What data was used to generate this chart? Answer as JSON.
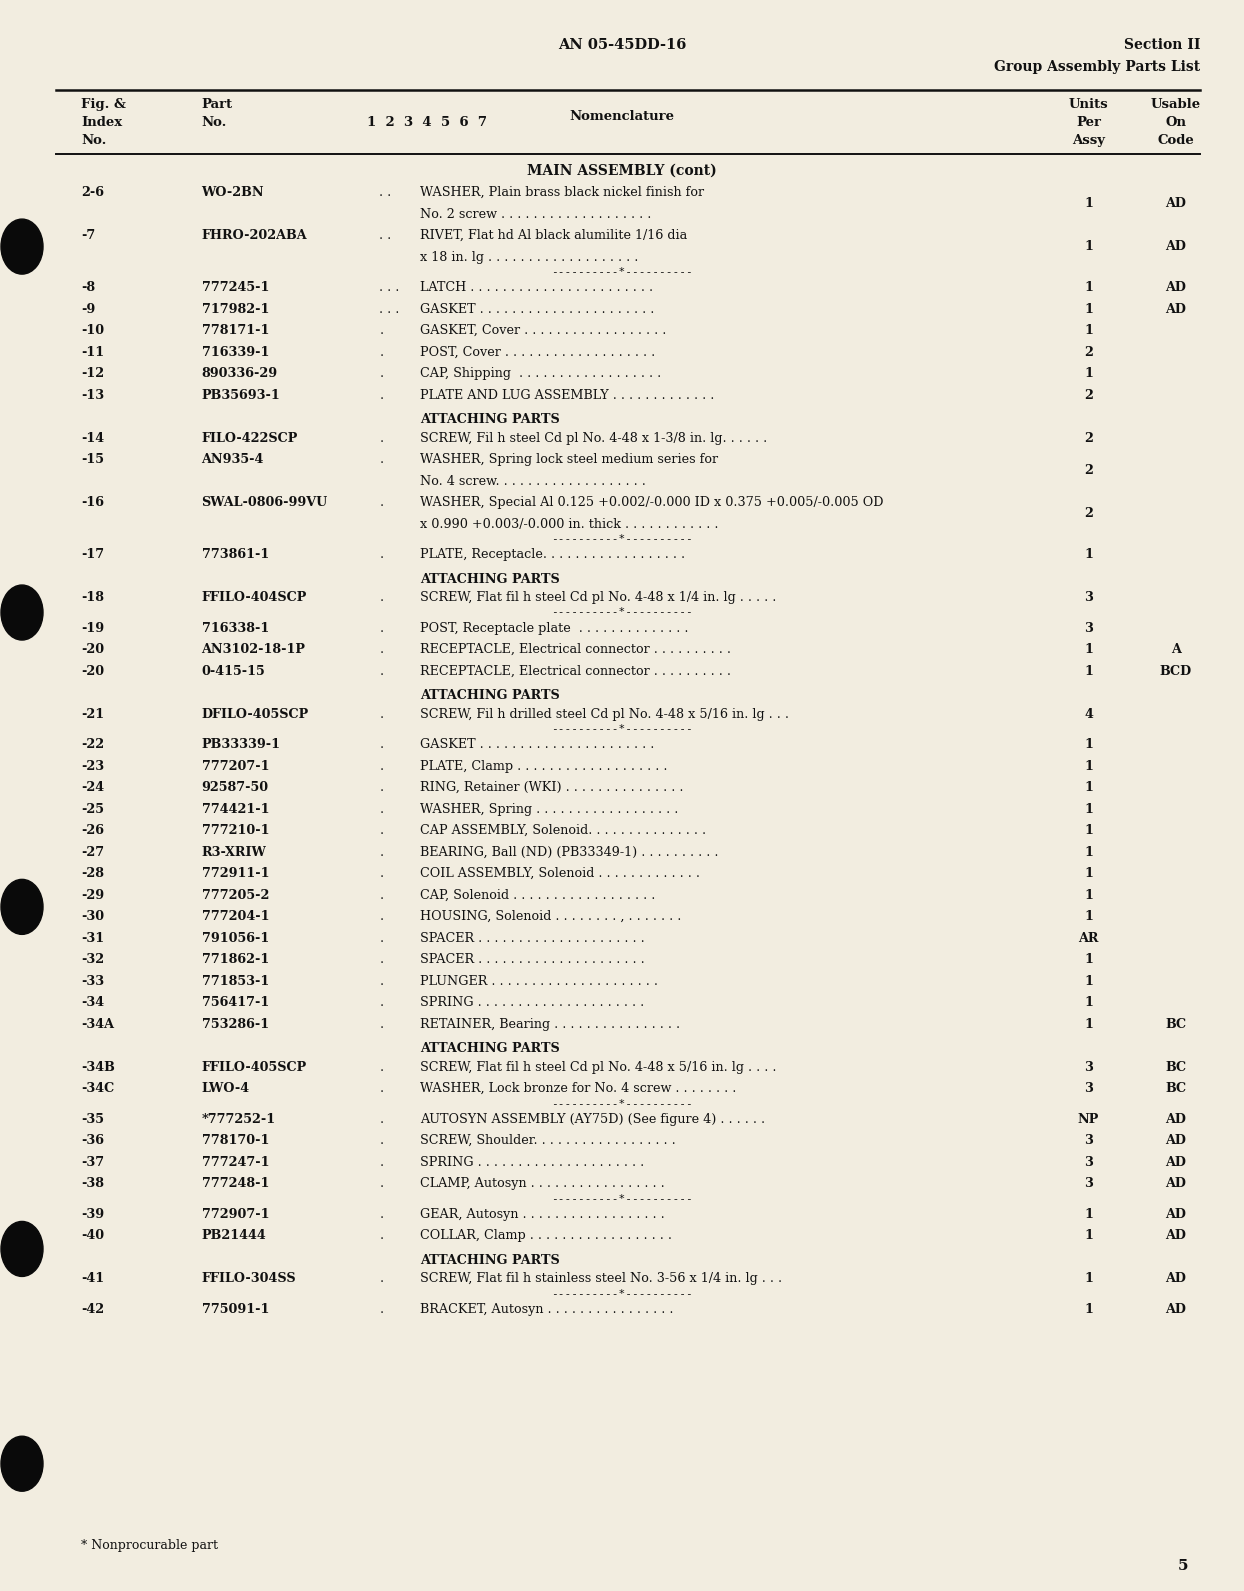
{
  "page_title_center": "AN 05-45DD-16",
  "page_title_right_line1": "Section II",
  "page_title_right_line2": "Group Assembly Parts List",
  "section_title": "MAIN ASSEMBLY (cont)",
  "bg_color": "#f2ede0",
  "text_color": "#111111",
  "page_number": "5",
  "col_x": {
    "fig": 0.068,
    "part": 0.16,
    "indent_marks": 0.31,
    "nomen": 0.34,
    "units": 0.88,
    "usable": 0.95
  },
  "rows": [
    {
      "fig": "2-6",
      "part": "WO-2BN",
      "dots": ". .",
      "nomenclature": "WASHER, Plain brass black nickel finish for\n                No. 2 screw . . . . . . . . . . . . . . . . . . .",
      "units": "1",
      "usable": "AD",
      "separator": false
    },
    {
      "fig": "-7",
      "part": "FHRO-202ABA",
      "dots": ". .",
      "nomenclature": "RIVET, Flat hd Al black alumilite 1/16 dia\n                x 18 in. lg . . . . . . . . . . . . . . . . . . .",
      "units": "1",
      "usable": "AD",
      "separator": true
    },
    {
      "fig": "-8",
      "part": "777245-1",
      "dots": ". . .",
      "nomenclature": "LATCH . . . . . . . . . . . . . . . . . . . . . . .",
      "units": "1",
      "usable": "AD",
      "separator": false
    },
    {
      "fig": "-9",
      "part": "717982-1",
      "dots": ". . .",
      "nomenclature": "GASKET . . . . . . . . . . . . . . . . . . . . . .",
      "units": "1",
      "usable": "AD",
      "separator": false
    },
    {
      "fig": "-10",
      "part": "778171-1",
      "dots": ".",
      "nomenclature": "GASKET, Cover . . . . . . . . . . . . . . . . . .",
      "units": "1",
      "usable": "",
      "separator": false
    },
    {
      "fig": "-11",
      "part": "716339-1",
      "dots": ".",
      "nomenclature": "POST, Cover . . . . . . . . . . . . . . . . . . .",
      "units": "2",
      "usable": "",
      "separator": false
    },
    {
      "fig": "-12",
      "part": "890336-29",
      "dots": ".",
      "nomenclature": "CAP, Shipping  . . . . . . . . . . . . . . . . . .",
      "units": "1",
      "usable": "",
      "separator": false
    },
    {
      "fig": "-13",
      "part": "PB35693-1",
      "dots": ".",
      "nomenclature": "PLATE AND LUG ASSEMBLY . . . . . . . . . . . . .",
      "units": "2",
      "usable": "",
      "separator": false
    },
    {
      "fig": "",
      "part": "",
      "dots": "",
      "nomenclature": "ATTACHING PARTS",
      "units": "",
      "usable": "",
      "separator": false,
      "attaching": true
    },
    {
      "fig": "-14",
      "part": "FILO-422SCP",
      "dots": ".",
      "nomenclature": "SCREW, Fil h steel Cd pl No. 4-48 x 1-3/8 in. lg. . . . . .",
      "units": "2",
      "usable": "",
      "separator": false
    },
    {
      "fig": "-15",
      "part": "AN935-4",
      "dots": ".",
      "nomenclature": "WASHER, Spring lock steel medium series for\n                No. 4 screw. . . . . . . . . . . . . . . . . . .",
      "units": "2",
      "usable": "",
      "separator": false
    },
    {
      "fig": "-16",
      "part": "SWAL-0806-99VU",
      "dots": ".",
      "nomenclature": "WASHER, Special Al 0.125 +0.002/-0.000 ID x 0.375 +0.005/-0.005 OD\n                x 0.990 +0.003/-0.000 in. thick . . . . . . . . . . . .",
      "units": "2",
      "usable": "",
      "separator": true
    },
    {
      "fig": "-17",
      "part": "773861-1",
      "dots": ".",
      "nomenclature": "PLATE, Receptacle. . . . . . . . . . . . . . . . . .",
      "units": "1",
      "usable": "",
      "separator": false
    },
    {
      "fig": "",
      "part": "",
      "dots": "",
      "nomenclature": "ATTACHING PARTS",
      "units": "",
      "usable": "",
      "separator": false,
      "attaching": true
    },
    {
      "fig": "-18",
      "part": "FFILO-404SCP",
      "dots": ".",
      "nomenclature": "SCREW, Flat fil h steel Cd pl No. 4-48 x 1/4 in. lg . . . . .",
      "units": "3",
      "usable": "",
      "separator": true
    },
    {
      "fig": "-19",
      "part": "716338-1",
      "dots": ".",
      "nomenclature": "POST, Receptacle plate  . . . . . . . . . . . . . .",
      "units": "3",
      "usable": "",
      "separator": false
    },
    {
      "fig": "-20",
      "part": "AN3102-18-1P",
      "dots": ".",
      "nomenclature": "RECEPTACLE, Electrical connector . . . . . . . . . .",
      "units": "1",
      "usable": "A",
      "separator": false
    },
    {
      "fig": "-20",
      "part": "0-415-15",
      "dots": ".",
      "nomenclature": "RECEPTACLE, Electrical connector . . . . . . . . . .",
      "units": "1",
      "usable": "BCD",
      "separator": false
    },
    {
      "fig": "",
      "part": "",
      "dots": "",
      "nomenclature": "ATTACHING PARTS",
      "units": "",
      "usable": "",
      "separator": false,
      "attaching": true
    },
    {
      "fig": "-21",
      "part": "DFILO-405SCP",
      "dots": ".",
      "nomenclature": "SCREW, Fil h drilled steel Cd pl No. 4-48 x 5/16 in. lg . . .",
      "units": "4",
      "usable": "",
      "separator": true
    },
    {
      "fig": "-22",
      "part": "PB33339-1",
      "dots": ".",
      "nomenclature": "GASKET . . . . . . . . . . . . . . . . . . . . . .",
      "units": "1",
      "usable": "",
      "separator": false
    },
    {
      "fig": "-23",
      "part": "777207-1",
      "dots": ".",
      "nomenclature": "PLATE, Clamp . . . . . . . . . . . . . . . . . . .",
      "units": "1",
      "usable": "",
      "separator": false
    },
    {
      "fig": "-24",
      "part": "92587-50",
      "dots": ".",
      "nomenclature": "RING, Retainer (WKI) . . . . . . . . . . . . . . .",
      "units": "1",
      "usable": "",
      "separator": false
    },
    {
      "fig": "-25",
      "part": "774421-1",
      "dots": ".",
      "nomenclature": "WASHER, Spring . . . . . . . . . . . . . . . . . .",
      "units": "1",
      "usable": "",
      "separator": false
    },
    {
      "fig": "-26",
      "part": "777210-1",
      "dots": ".",
      "nomenclature": "CAP ASSEMBLY, Solenoid. . . . . . . . . . . . . . .",
      "units": "1",
      "usable": "",
      "separator": false
    },
    {
      "fig": "-27",
      "part": "R3-XRIW",
      "dots": ".",
      "nomenclature": "BEARING, Ball (ND) (PB33349-1) . . . . . . . . . .",
      "units": "1",
      "usable": "",
      "separator": false
    },
    {
      "fig": "-28",
      "part": "772911-1",
      "dots": ".",
      "nomenclature": "COIL ASSEMBLY, Solenoid . . . . . . . . . . . . .",
      "units": "1",
      "usable": "",
      "separator": false
    },
    {
      "fig": "-29",
      "part": "777205-2",
      "dots": ".",
      "nomenclature": "CAP, Solenoid . . . . . . . . . . . . . . . . . .",
      "units": "1",
      "usable": "",
      "separator": false
    },
    {
      "fig": "-30",
      "part": "777204-1",
      "dots": ".",
      "nomenclature": "HOUSING, Solenoid . . . . . . . . , . . . . . . .",
      "units": "1",
      "usable": "",
      "separator": false
    },
    {
      "fig": "-31",
      "part": "791056-1",
      "dots": ".",
      "nomenclature": "SPACER . . . . . . . . . . . . . . . . . . . . .",
      "units": "AR",
      "usable": "",
      "separator": false
    },
    {
      "fig": "-32",
      "part": "771862-1",
      "dots": ".",
      "nomenclature": "SPACER . . . . . . . . . . . . . . . . . . . . .",
      "units": "1",
      "usable": "",
      "separator": false
    },
    {
      "fig": "-33",
      "part": "771853-1",
      "dots": ".",
      "nomenclature": "PLUNGER . . . . . . . . . . . . . . . . . . . . .",
      "units": "1",
      "usable": "",
      "separator": false
    },
    {
      "fig": "-34",
      "part": "756417-1",
      "dots": ".",
      "nomenclature": "SPRING . . . . . . . . . . . . . . . . . . . . .",
      "units": "1",
      "usable": "",
      "separator": false
    },
    {
      "fig": "-34A",
      "part": "753286-1",
      "dots": ".",
      "nomenclature": "RETAINER, Bearing . . . . . . . . . . . . . . . .",
      "units": "1",
      "usable": "BC",
      "separator": false
    },
    {
      "fig": "",
      "part": "",
      "dots": "",
      "nomenclature": "ATTACHING PARTS",
      "units": "",
      "usable": "",
      "separator": false,
      "attaching": true
    },
    {
      "fig": "-34B",
      "part": "FFILO-405SCP",
      "dots": ".",
      "nomenclature": "SCREW, Flat fil h steel Cd pl No. 4-48 x 5/16 in. lg . . . .",
      "units": "3",
      "usable": "BC",
      "separator": false
    },
    {
      "fig": "-34C",
      "part": "LWO-4",
      "dots": ".",
      "nomenclature": "WASHER, Lock bronze for No. 4 screw . . . . . . . .",
      "units": "3",
      "usable": "BC",
      "separator": true
    },
    {
      "fig": "-35",
      "part": "*777252-1",
      "dots": ".",
      "nomenclature": "AUTOSYN ASSEMBLY (AY75D) (See figure 4) . . . . . .",
      "units": "NP",
      "usable": "AD",
      "separator": false
    },
    {
      "fig": "-36",
      "part": "778170-1",
      "dots": ".",
      "nomenclature": "SCREW, Shoulder. . . . . . . . . . . . . . . . . .",
      "units": "3",
      "usable": "AD",
      "separator": false
    },
    {
      "fig": "-37",
      "part": "777247-1",
      "dots": ".",
      "nomenclature": "SPRING . . . . . . . . . . . . . . . . . . . . .",
      "units": "3",
      "usable": "AD",
      "separator": false
    },
    {
      "fig": "-38",
      "part": "777248-1",
      "dots": ".",
      "nomenclature": "CLAMP, Autosyn . . . . . . . . . . . . . . . . .",
      "units": "3",
      "usable": "AD",
      "separator": true
    },
    {
      "fig": "-39",
      "part": "772907-1",
      "dots": ".",
      "nomenclature": "GEAR, Autosyn . . . . . . . . . . . . . . . . . .",
      "units": "1",
      "usable": "AD",
      "separator": false
    },
    {
      "fig": "-40",
      "part": "PB21444",
      "dots": ".",
      "nomenclature": "COLLAR, Clamp . . . . . . . . . . . . . . . . . .",
      "units": "1",
      "usable": "AD",
      "separator": false
    },
    {
      "fig": "",
      "part": "",
      "dots": "",
      "nomenclature": "ATTACHING PARTS",
      "units": "",
      "usable": "",
      "separator": false,
      "attaching": true
    },
    {
      "fig": "-41",
      "part": "FFILO-304SS",
      "dots": ".",
      "nomenclature": "SCREW, Flat fil h stainless steel No. 3-56 x 1/4 in. lg . . .",
      "units": "1",
      "usable": "AD",
      "separator": true
    },
    {
      "fig": "-42",
      "part": "775091-1",
      "dots": ".",
      "nomenclature": "BRACKET, Autosyn . . . . . . . . . . . . . . . .",
      "units": "1",
      "usable": "AD",
      "separator": false
    }
  ],
  "footnote": "* Nonprocurable part"
}
